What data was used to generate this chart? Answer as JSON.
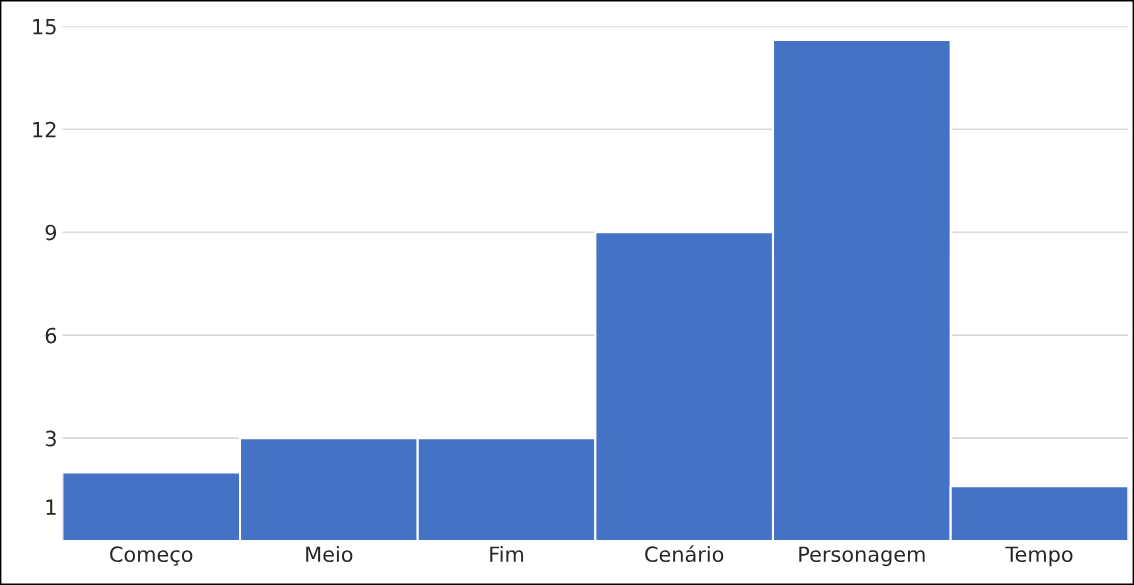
{
  "chart_data": {
    "type": "bar",
    "categories": [
      "Começo",
      "Meio",
      "Fim",
      "Cenário",
      "Personagem",
      "Tempo"
    ],
    "values": [
      2,
      3,
      3,
      9,
      14.6,
      1.6
    ],
    "color": "#4472c4",
    "ylim": [
      0,
      15
    ],
    "yticks": [
      1,
      3,
      6,
      9,
      12,
      15
    ],
    "grid": "y"
  }
}
